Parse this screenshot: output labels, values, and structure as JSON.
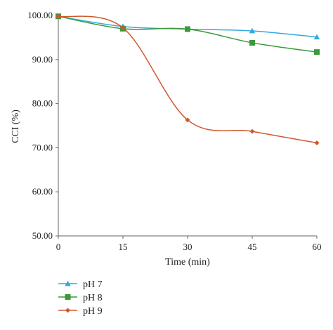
{
  "chart_data": {
    "type": "line",
    "title": "",
    "xlabel": "Time (min)",
    "ylabel": "CCI (%)",
    "x": [
      0,
      15,
      30,
      45,
      60
    ],
    "xticks": [
      "0",
      "15",
      "30",
      "45",
      "60"
    ],
    "yticks": [
      "50.00",
      "60.00",
      "70.00",
      "80.00",
      "90.00",
      "100.00"
    ],
    "xlim": [
      0,
      60
    ],
    "ylim": [
      50,
      100
    ],
    "grid": false,
    "legend_position": "bottom-left",
    "series": [
      {
        "name": "pH 7",
        "values": [
          99.8,
          97.5,
          96.9,
          96.5,
          95.1
        ],
        "color": "#33aadd",
        "marker": "triangle"
      },
      {
        "name": "pH 8",
        "values": [
          99.8,
          97.0,
          96.9,
          93.8,
          91.7
        ],
        "color": "#3a9a3a",
        "marker": "square"
      },
      {
        "name": "pH 9",
        "values": [
          99.8,
          97.2,
          76.3,
          73.7,
          71.1
        ],
        "color": "#d0582e",
        "marker": "diamond"
      }
    ]
  }
}
